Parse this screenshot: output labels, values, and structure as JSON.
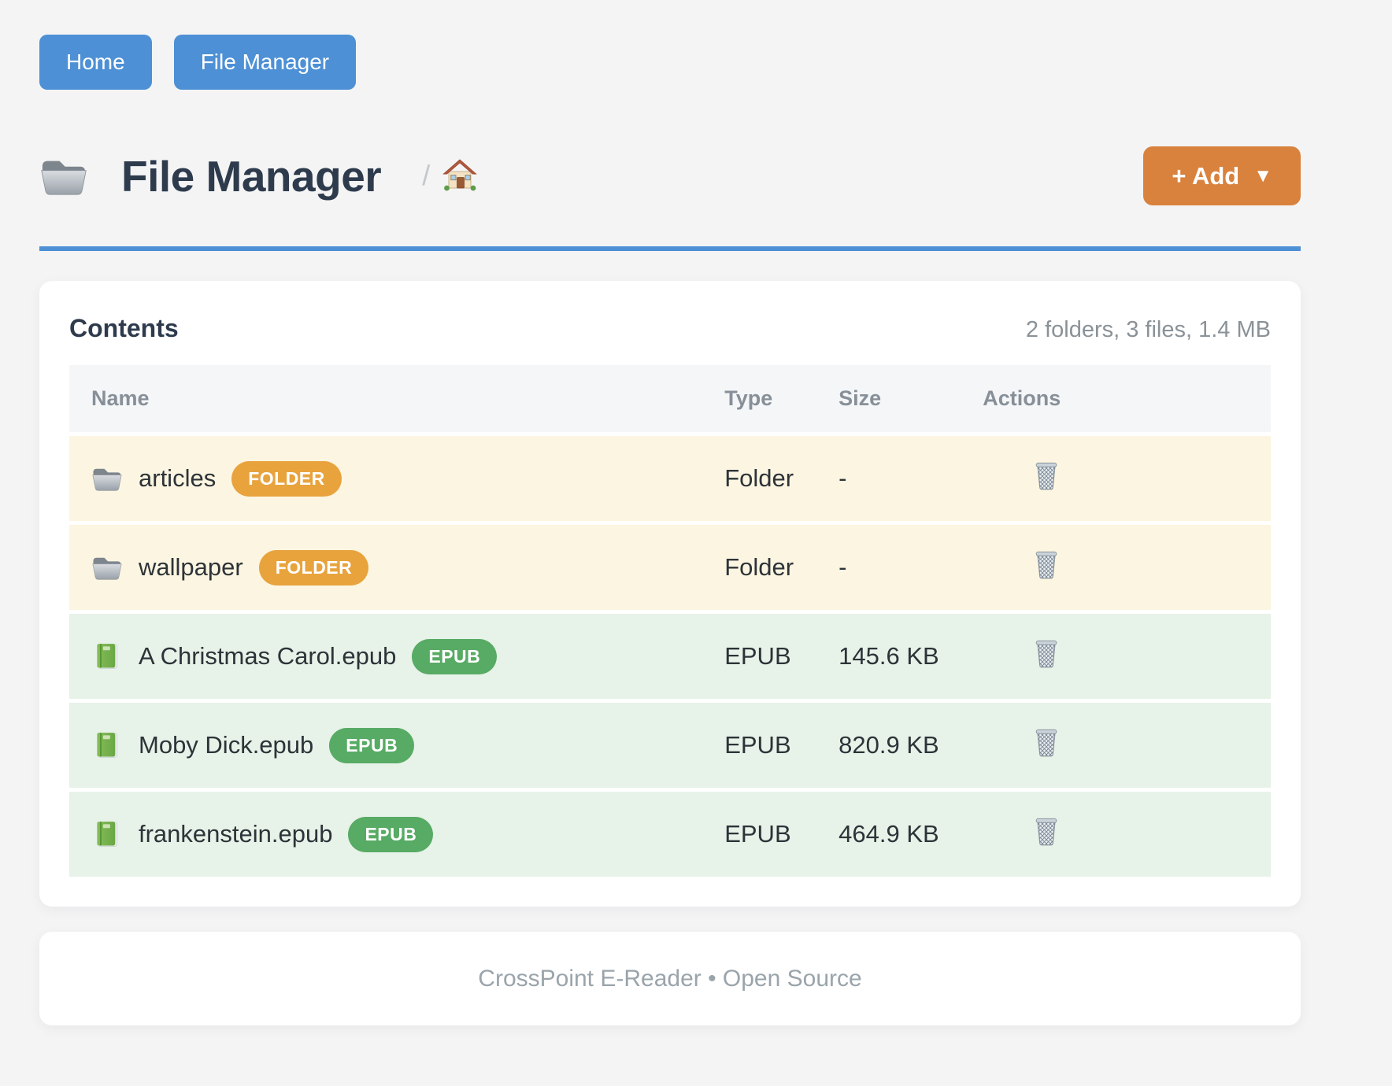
{
  "nav": {
    "buttons": [
      {
        "label": "Home"
      },
      {
        "label": "File Manager"
      }
    ]
  },
  "header": {
    "title": "File Manager",
    "title_icon": "folder-icon",
    "breadcrumb_separator": "/",
    "breadcrumb_icon": "house-icon",
    "add_button": {
      "label": "+ Add",
      "caret": "▼"
    }
  },
  "colors": {
    "primary_blue": "#4d90d5",
    "accent_orange": "#d9823d",
    "folder_badge": "#e8a33d",
    "epub_badge": "#57ab64",
    "folder_row_bg": "#fcf5e1",
    "epub_row_bg": "#e7f2e8"
  },
  "contents": {
    "heading": "Contents",
    "summary": "2 folders, 3 files, 1.4 MB",
    "columns": [
      "Name",
      "Type",
      "Size",
      "Actions"
    ],
    "rows": [
      {
        "icon": "folder-icon",
        "name": "articles",
        "badge": "FOLDER",
        "badge_color": "#e8a33d",
        "kind": "folder",
        "type": "Folder",
        "size": "-",
        "action_icon": "trash-icon"
      },
      {
        "icon": "folder-icon",
        "name": "wallpaper",
        "badge": "FOLDER",
        "badge_color": "#e8a33d",
        "kind": "folder",
        "type": "Folder",
        "size": "-",
        "action_icon": "trash-icon"
      },
      {
        "icon": "book-icon",
        "name": "A Christmas Carol.epub",
        "badge": "EPUB",
        "badge_color": "#57ab64",
        "kind": "epub",
        "type": "EPUB",
        "size": "145.6 KB",
        "action_icon": "trash-icon"
      },
      {
        "icon": "book-icon",
        "name": "Moby Dick.epub",
        "badge": "EPUB",
        "badge_color": "#57ab64",
        "kind": "epub",
        "type": "EPUB",
        "size": "820.9 KB",
        "action_icon": "trash-icon"
      },
      {
        "icon": "book-icon",
        "name": "frankenstein.epub",
        "badge": "EPUB",
        "badge_color": "#57ab64",
        "kind": "epub",
        "type": "EPUB",
        "size": "464.9 KB",
        "action_icon": "trash-icon"
      }
    ]
  },
  "footer": {
    "text": "CrossPoint E-Reader • Open Source"
  }
}
